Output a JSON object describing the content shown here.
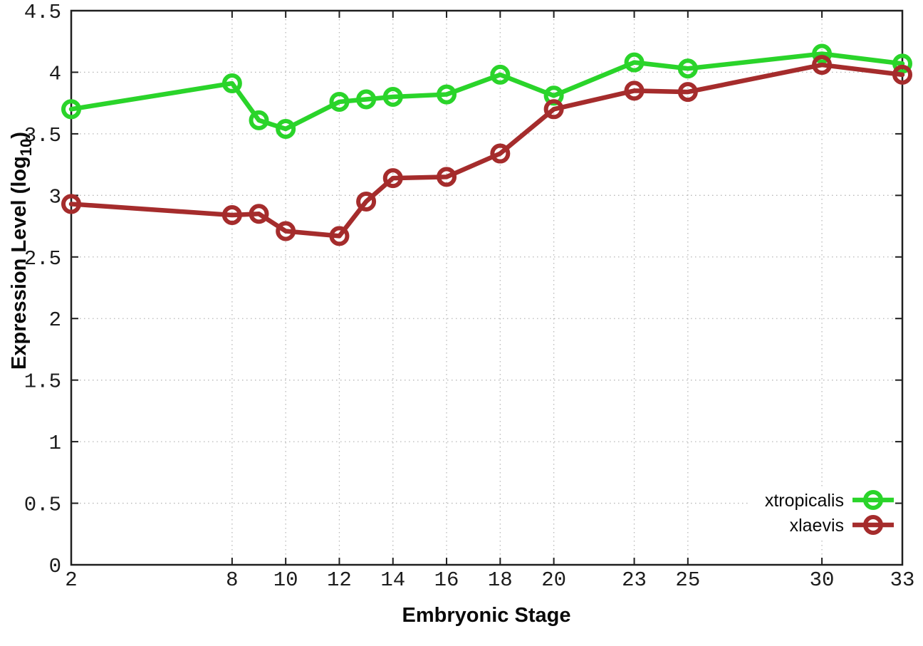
{
  "chart_data": {
    "type": "line",
    "title": "",
    "xlabel": "Embryonic Stage",
    "ylabel": {
      "prefix": "Expression Level (log",
      "subscript": "10",
      "suffix": ")"
    },
    "xlim": [
      2,
      33
    ],
    "ylim": [
      0,
      4.5
    ],
    "grid": true,
    "legend_position": "bottom-right",
    "xticks": [
      2,
      8,
      10,
      12,
      14,
      16,
      18,
      20,
      23,
      25,
      30,
      33
    ],
    "yticks": [
      0,
      0.5,
      1,
      1.5,
      2,
      2.5,
      3,
      3.5,
      4,
      4.5
    ],
    "x": [
      2,
      8,
      9,
      10,
      12,
      13,
      14,
      16,
      18,
      20,
      23,
      25,
      30,
      33
    ],
    "series": [
      {
        "name": "xtropicalis",
        "color": "#2ad42a",
        "values": [
          3.7,
          3.91,
          3.61,
          3.54,
          3.76,
          3.78,
          3.8,
          3.82,
          3.98,
          3.81,
          4.08,
          4.03,
          4.15,
          4.07
        ]
      },
      {
        "name": "xlaevis",
        "color": "#a52c2c",
        "values": [
          2.93,
          2.84,
          2.85,
          2.71,
          2.67,
          2.95,
          3.14,
          3.15,
          3.34,
          3.7,
          3.85,
          3.84,
          4.06,
          3.98
        ]
      }
    ],
    "colors": {
      "grid": "#b8b8b8",
      "border": "#1f1f1f",
      "background": "#ffffff"
    }
  }
}
